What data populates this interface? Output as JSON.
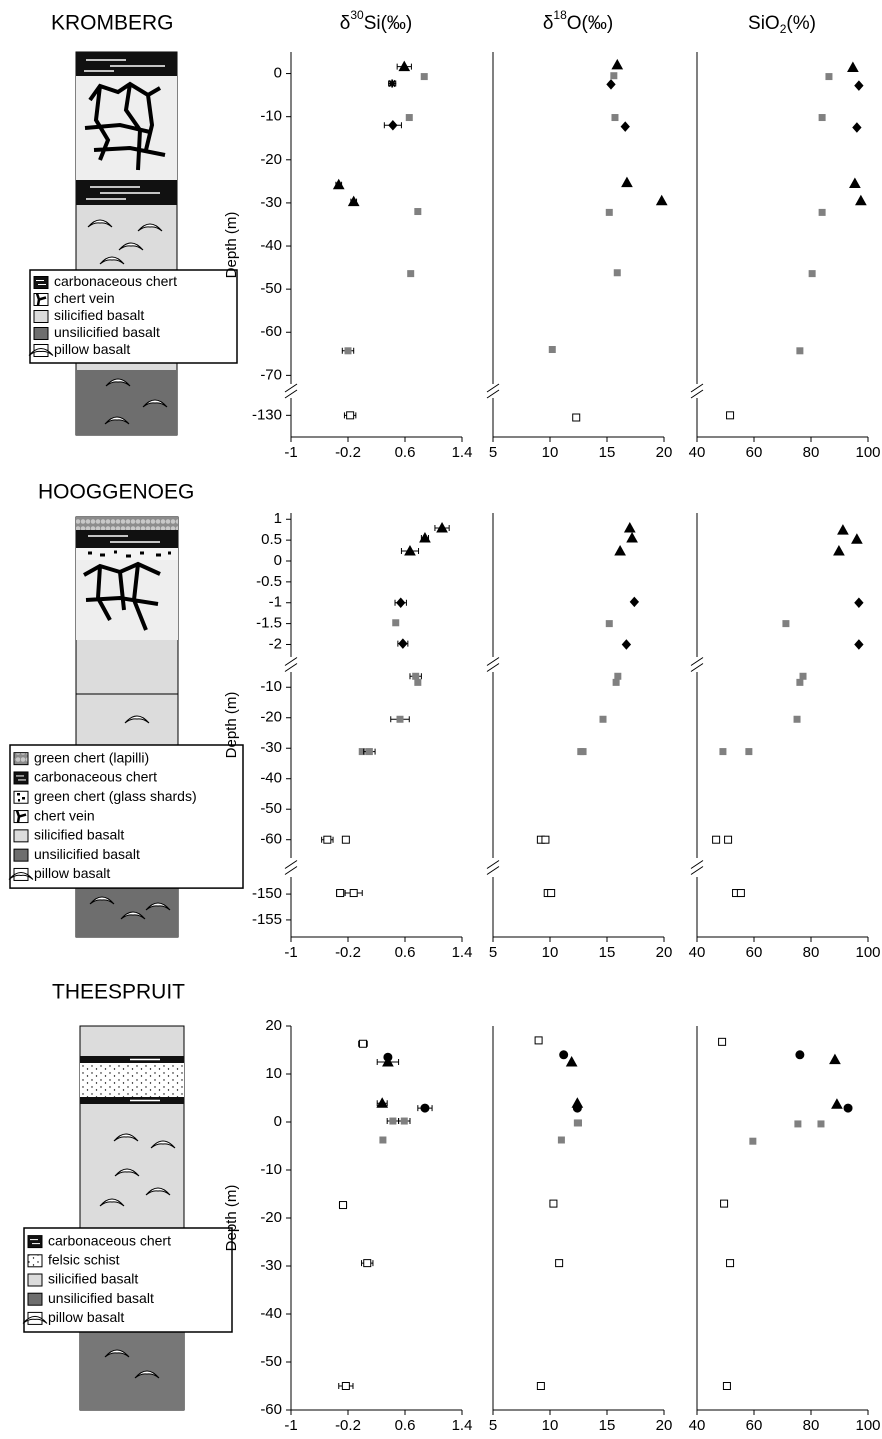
{
  "headers": [
    {
      "pre": "δ",
      "sup": "30",
      "post": "Si(‰)"
    },
    {
      "pre": "δ",
      "sup": "18",
      "post": "O(‰)"
    },
    {
      "pre": "SiO",
      "sub": "2",
      "post": "(%)"
    }
  ],
  "sections": [
    {
      "title": "KROMBERG",
      "y_label": "Depth (m)",
      "legend": [
        "carbonaceous chert",
        "chert vein",
        "silicified basalt",
        "unsilicified basalt",
        "pillow basalt"
      ]
    },
    {
      "title": "HOOGGENOEG",
      "y_label": "Depth (m)",
      "legend": [
        "green chert (lapilli)",
        "carbonaceous chert",
        "green chert (glass shards)",
        "chert vein",
        "silicified basalt",
        "unsilicified basalt",
        "pillow basalt"
      ]
    },
    {
      "title": "THEESPRUIT",
      "y_label": "Depth (m)",
      "legend": [
        "carbonaceous chert",
        "felsic schist",
        "silicified basalt",
        "unsilicified basalt",
        "pillow basalt"
      ]
    }
  ],
  "chart_data": [
    {
      "type": "scatter",
      "xlim": [
        -1,
        1.4
      ],
      "xticks": [
        -1,
        -0.2,
        0.6,
        1.4
      ],
      "y_segments": [
        {
          "ylim": [
            -72,
            5
          ],
          "yticks": [
            0,
            -10,
            -20,
            -30,
            -40,
            -50,
            -60,
            -70
          ]
        },
        {
          "ylim": [
            -135,
            -126
          ],
          "yticks": [
            -130
          ]
        }
      ],
      "series": [
        {
          "marker": "triangle",
          "color": "#000000",
          "x": [
            0.59,
            -0.33,
            -0.12
          ],
          "y": [
            1.6,
            -25.8,
            -29.7
          ],
          "xerr": [
            0.1,
            0.04,
            0.04
          ]
        },
        {
          "marker": "star",
          "color": "#000000",
          "x": [
            0.42
          ],
          "y": [
            -2.3
          ],
          "xerr": [
            0.05
          ]
        },
        {
          "marker": "diamond",
          "color": "#000000",
          "x": [
            0.43
          ],
          "y": [
            -12
          ],
          "xerr": [
            0.12
          ]
        },
        {
          "marker": "square",
          "color": "#808080",
          "x": [
            0.87,
            0.66,
            0.78,
            0.68,
            -0.2
          ],
          "y": [
            -0.7,
            -10.2,
            -32,
            -46.4,
            -64.3
          ],
          "xerr": [
            null,
            null,
            null,
            null,
            0.08
          ]
        },
        {
          "marker": "square",
          "color": "#ffffff",
          "x": [
            -0.17
          ],
          "y": [
            -130
          ],
          "xerr": [
            0.08
          ]
        }
      ]
    },
    {
      "type": "scatter",
      "xlim": [
        5,
        20
      ],
      "xticks": [
        5,
        10,
        15,
        20
      ],
      "y_segments": [
        {
          "ylim": [
            -72,
            5
          ]
        },
        {
          "ylim": [
            -135,
            -126
          ]
        }
      ],
      "series": [
        {
          "marker": "triangle",
          "color": "#000000",
          "x": [
            15.9,
            16.75,
            19.8
          ],
          "y": [
            2,
            -25.3,
            -29.5
          ]
        },
        {
          "marker": "diamond",
          "color": "#000000",
          "x": [
            15.35,
            16.6
          ],
          "y": [
            -2.5,
            -12.3
          ]
        },
        {
          "marker": "square",
          "color": "#808080",
          "x": [
            15.6,
            15.7,
            15.2,
            15.9,
            10.2
          ],
          "y": [
            -0.5,
            -10.2,
            -32.2,
            -46.2,
            -64
          ]
        },
        {
          "marker": "square",
          "color": "#ffffff",
          "x": [
            12.3
          ],
          "y": [
            -130.5
          ]
        }
      ]
    },
    {
      "type": "scatter",
      "xlim": [
        40,
        100
      ],
      "xticks": [
        40,
        60,
        80,
        100
      ],
      "y_segments": [
        {
          "ylim": [
            -72,
            5
          ]
        },
        {
          "ylim": [
            -135,
            -126
          ]
        }
      ],
      "series": [
        {
          "marker": "triangle",
          "color": "#000000",
          "x": [
            94.7,
            95.4,
            97.5
          ],
          "y": [
            1.4,
            -25.5,
            -29.5
          ]
        },
        {
          "marker": "diamond",
          "color": "#000000",
          "x": [
            96.8,
            96.1
          ],
          "y": [
            -2.8,
            -12.5
          ]
        },
        {
          "marker": "square",
          "color": "#808080",
          "x": [
            86.3,
            83.9,
            83.9,
            80.4,
            76.1
          ],
          "y": [
            -0.7,
            -10.2,
            -32.2,
            -46.4,
            -64.3
          ]
        },
        {
          "marker": "square",
          "color": "#ffffff",
          "x": [
            51.6
          ],
          "y": [
            -130
          ]
        }
      ]
    },
    {
      "type": "scatter",
      "xlim": [
        -1,
        1.4
      ],
      "xticks": [
        -1,
        -0.2,
        0.6,
        1.4
      ],
      "y_segments": [
        {
          "ylim": [
            -2.3,
            1.15
          ],
          "yticks": [
            1,
            0.5,
            0,
            -0.5,
            -1,
            -1.5,
            -2
          ]
        },
        {
          "ylim": [
            -66,
            -5
          ],
          "yticks": [
            -10,
            -20,
            -30,
            -40,
            -50,
            -60
          ]
        },
        {
          "ylim": [
            -158.3,
            -146.7
          ],
          "yticks": [
            -150,
            -155
          ]
        }
      ],
      "series": [
        {
          "marker": "triangle",
          "color": "#000000",
          "x": [
            1.12,
            0.88,
            0.67
          ],
          "y": [
            0.79,
            0.55,
            0.24
          ],
          "xerr": [
            0.1,
            0.05,
            0.12
          ]
        },
        {
          "marker": "diamond",
          "color": "#000000",
          "x": [
            0.54,
            0.57
          ],
          "y": [
            -1,
            -1.98
          ],
          "xerr": [
            0.08,
            0.07
          ]
        },
        {
          "marker": "square",
          "color": "#808080",
          "x": [
            0.47,
            0.75,
            0.78,
            0.53,
            0,
            0.1
          ],
          "y": [
            -1.48,
            -6.4,
            -8.4,
            -20.5,
            -31.1,
            -31.1
          ],
          "xerr": [
            null,
            0.08,
            null,
            0.13,
            null,
            0.08
          ]
        },
        {
          "marker": "square",
          "color": "#ffffff",
          "x": [
            -0.49,
            -0.23,
            -0.31,
            -0.12
          ],
          "y": [
            -60,
            -60,
            -149.8,
            -149.8
          ],
          "xerr": [
            0.08,
            null,
            0.05,
            0.12
          ]
        }
      ]
    },
    {
      "type": "scatter",
      "xlim": [
        5,
        20
      ],
      "xticks": [
        5,
        10,
        15,
        20
      ],
      "y_segments": [
        {
          "ylim": [
            -2.3,
            1.15
          ]
        },
        {
          "ylim": [
            -66,
            -5
          ]
        },
        {
          "ylim": [
            -158.3,
            -146.7
          ]
        }
      ],
      "series": [
        {
          "marker": "triangle",
          "color": "#000000",
          "x": [
            17,
            17.2,
            16.15
          ],
          "y": [
            0.79,
            0.55,
            0.24
          ]
        },
        {
          "marker": "diamond",
          "color": "#000000",
          "x": [
            17.4,
            16.7
          ],
          "y": [
            -0.98,
            -2
          ]
        },
        {
          "marker": "square",
          "color": "#808080",
          "x": [
            15.2,
            15.95,
            15.8,
            14.65,
            12.7,
            12.9
          ],
          "y": [
            -1.5,
            -6.4,
            -8.4,
            -20.5,
            -31.1,
            -31.1
          ]
        },
        {
          "marker": "square",
          "color": "#ffffff",
          "x": [
            9.2,
            9.6,
            9.8,
            10.1
          ],
          "y": [
            -60,
            -60,
            -149.8,
            -149.8
          ]
        }
      ]
    },
    {
      "type": "scatter",
      "xlim": [
        40,
        100
      ],
      "xticks": [
        40,
        60,
        80,
        100
      ],
      "y_segments": [
        {
          "ylim": [
            -2.3,
            1.15
          ]
        },
        {
          "ylim": [
            -66,
            -5
          ]
        },
        {
          "ylim": [
            -158.3,
            -146.7
          ]
        }
      ],
      "series": [
        {
          "marker": "triangle",
          "color": "#000000",
          "x": [
            91.2,
            96.1,
            89.8
          ],
          "y": [
            0.74,
            0.52,
            0.24
          ]
        },
        {
          "marker": "diamond",
          "color": "#000000",
          "x": [
            96.8,
            96.8
          ],
          "y": [
            -1,
            -2
          ]
        },
        {
          "marker": "square",
          "color": "#808080",
          "x": [
            71.2,
            77.2,
            76.1,
            75.1,
            49.1,
            58.2
          ],
          "y": [
            -1.5,
            -6.4,
            -8.4,
            -20.5,
            -31.1,
            -31.1
          ]
        },
        {
          "marker": "square",
          "color": "#ffffff",
          "x": [
            46.7,
            50.9,
            53.7,
            55.4
          ],
          "y": [
            -60,
            -60,
            -149.8,
            -149.8
          ]
        }
      ]
    },
    {
      "type": "scatter",
      "xlim": [
        -1,
        1.4
      ],
      "xticks": [
        -1,
        -0.2,
        0.6,
        1.4
      ],
      "y_segments": [
        {
          "ylim": [
            -60,
            20
          ],
          "yticks": [
            20,
            10,
            0,
            -10,
            -20,
            -30,
            -40,
            -50,
            -60
          ]
        }
      ],
      "series": [
        {
          "marker": "square",
          "color": "#ffffff",
          "x": [
            0.01,
            -0.27,
            0.07,
            -0.23
          ],
          "y": [
            16.3,
            -17.3,
            -29.4,
            -55
          ],
          "xerr": [
            0.06,
            0.05,
            0.08,
            0.1
          ]
        },
        {
          "marker": "circle",
          "color": "#000000",
          "x": [
            0.36,
            0.88
          ],
          "y": [
            13.5,
            2.9
          ],
          "xerr": [
            null,
            0.1
          ]
        },
        {
          "marker": "triangle",
          "color": "#000000",
          "x": [
            0.36,
            0.28
          ],
          "y": [
            12.5,
            3.9
          ],
          "xerr": [
            0.15,
            0.07
          ]
        },
        {
          "marker": "square",
          "color": "#808080",
          "x": [
            0.43,
            0.59,
            0.29
          ],
          "y": [
            0.2,
            0.2,
            -3.75
          ],
          "xerr": [
            0.08,
            0.08,
            null
          ]
        }
      ]
    },
    {
      "type": "scatter",
      "xlim": [
        5,
        20
      ],
      "xticks": [
        5,
        10,
        15,
        20
      ],
      "y_segments": [
        {
          "ylim": [
            -60,
            20
          ]
        }
      ],
      "series": [
        {
          "marker": "square",
          "color": "#ffffff",
          "x": [
            9,
            10.3,
            10.8,
            9.2
          ],
          "y": [
            17,
            -17,
            -29.4,
            -55
          ]
        },
        {
          "marker": "circle",
          "color": "#000000",
          "x": [
            11.2,
            12.4
          ],
          "y": [
            14,
            2.9
          ]
        },
        {
          "marker": "triangle",
          "color": "#000000",
          "x": [
            11.9,
            12.4
          ],
          "y": [
            12.5,
            3.9
          ]
        },
        {
          "marker": "square",
          "color": "#808080",
          "x": [
            12.4,
            12.5,
            11
          ],
          "y": [
            -0.2,
            -0.2,
            -3.75
          ]
        }
      ]
    },
    {
      "type": "scatter",
      "xlim": [
        40,
        100
      ],
      "xticks": [
        40,
        60,
        80,
        100
      ],
      "y_segments": [
        {
          "ylim": [
            -60,
            20
          ]
        }
      ],
      "series": [
        {
          "marker": "square",
          "color": "#ffffff",
          "x": [
            48.8,
            49.5,
            51.6,
            50.5
          ],
          "y": [
            16.7,
            -17,
            -29.4,
            -55
          ]
        },
        {
          "marker": "circle",
          "color": "#000000",
          "x": [
            76.1,
            93
          ],
          "y": [
            14,
            2.9
          ]
        },
        {
          "marker": "triangle",
          "color": "#000000",
          "x": [
            88.4,
            89.1
          ],
          "y": [
            13,
            3.7
          ]
        },
        {
          "marker": "square",
          "color": "#808080",
          "x": [
            75.4,
            83.5,
            59.6
          ],
          "y": [
            -0.4,
            -0.4,
            -4
          ]
        }
      ]
    }
  ]
}
